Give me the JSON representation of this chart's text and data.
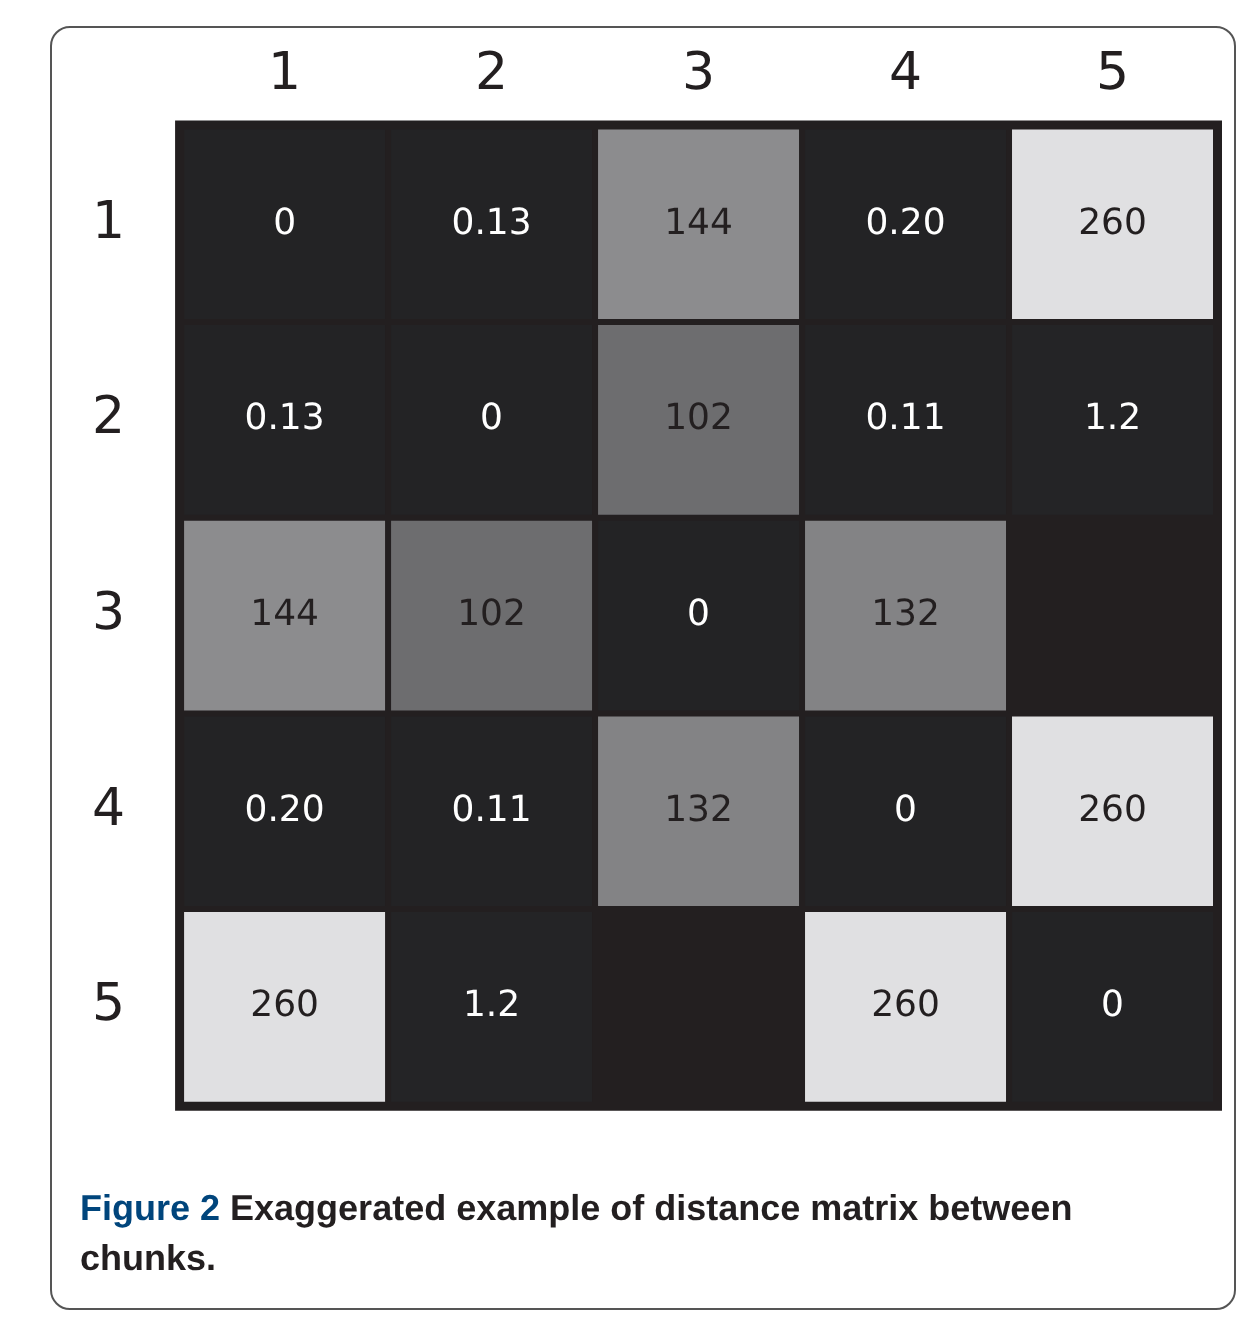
{
  "chart_data": {
    "type": "heatmap",
    "categories": [
      "1",
      "2",
      "3",
      "4",
      "5"
    ],
    "y_categories": [
      "1",
      "2",
      "3",
      "4",
      "5"
    ],
    "cells": [
      [
        0,
        0.13,
        144,
        0.2,
        260
      ],
      [
        0.13,
        0,
        102,
        0.11,
        1.2
      ],
      [
        144,
        102,
        0,
        132,
        null
      ],
      [
        0.2,
        0.11,
        132,
        0,
        260
      ],
      [
        260,
        1.2,
        null,
        260,
        0
      ]
    ],
    "cell_labels": [
      [
        "0",
        "0.13",
        "144",
        "0.20",
        "260"
      ],
      [
        "0.13",
        "0",
        "102",
        "0.11",
        "1.2"
      ],
      [
        "144",
        "102",
        "0",
        "132",
        null
      ],
      [
        "0.20",
        "0.11",
        "132",
        "0",
        "260"
      ],
      [
        "260",
        "1.2",
        null,
        "260",
        "0"
      ]
    ],
    "annotations": [
      "Figure 2 Exaggerated example of distance matrix between chunks."
    ]
  }
}
